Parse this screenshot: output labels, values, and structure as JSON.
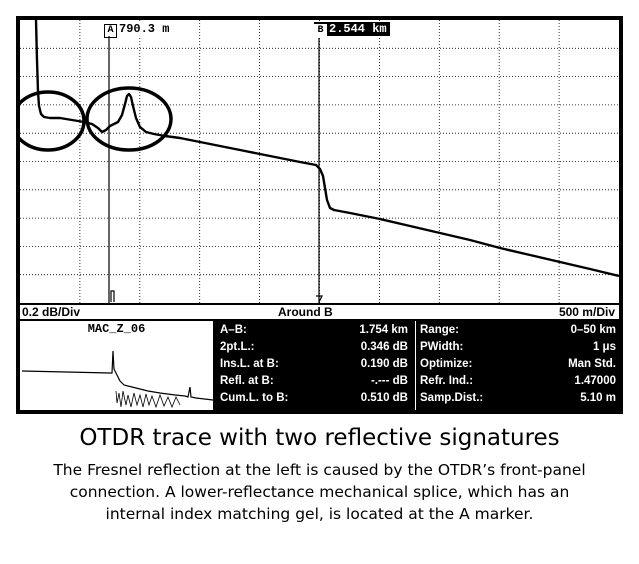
{
  "markers": {
    "a": {
      "letter": "A",
      "value": "790.3 m"
    },
    "b": {
      "letter": "B",
      "value": "2.544 km"
    }
  },
  "scale_bar": {
    "vertical": "0.2 dB/Div",
    "center": "Around B",
    "horizontal": "500 m/Div"
  },
  "overview": {
    "name": "MAC_Z_06"
  },
  "readouts": {
    "measurements": [
      {
        "label": "A–B:",
        "value": "1.754 km"
      },
      {
        "label": "2pt.L.:",
        "value": "0.346 dB"
      },
      {
        "label": "Ins.L. at B:",
        "value": "0.190 dB"
      },
      {
        "label": "Refl. at B:",
        "value": "-.--- dB"
      },
      {
        "label": "Cum.L. to B:",
        "value": "0.510 dB"
      }
    ],
    "settings": [
      {
        "label": "Range:",
        "value": "0–50 km"
      },
      {
        "label": "PWidth:",
        "value": "1 μs"
      },
      {
        "label": "Optimize:",
        "value": "Man Std."
      },
      {
        "label": "Refr. Ind.:",
        "value": "1.47000"
      },
      {
        "label": "Samp.Dist.:",
        "value": "5.10 m"
      }
    ]
  },
  "caption": {
    "title": "OTDR trace with two reflective signatures",
    "body": "The Fresnel reflection at the left is caused by the OTDR’s front-panel connection. A lower-reflectance mechanical splice, which has an internal index matching gel, is located at the A marker."
  },
  "colors": {
    "screen_background": "#000000",
    "trace": "#000000",
    "grid": "#000000"
  }
}
